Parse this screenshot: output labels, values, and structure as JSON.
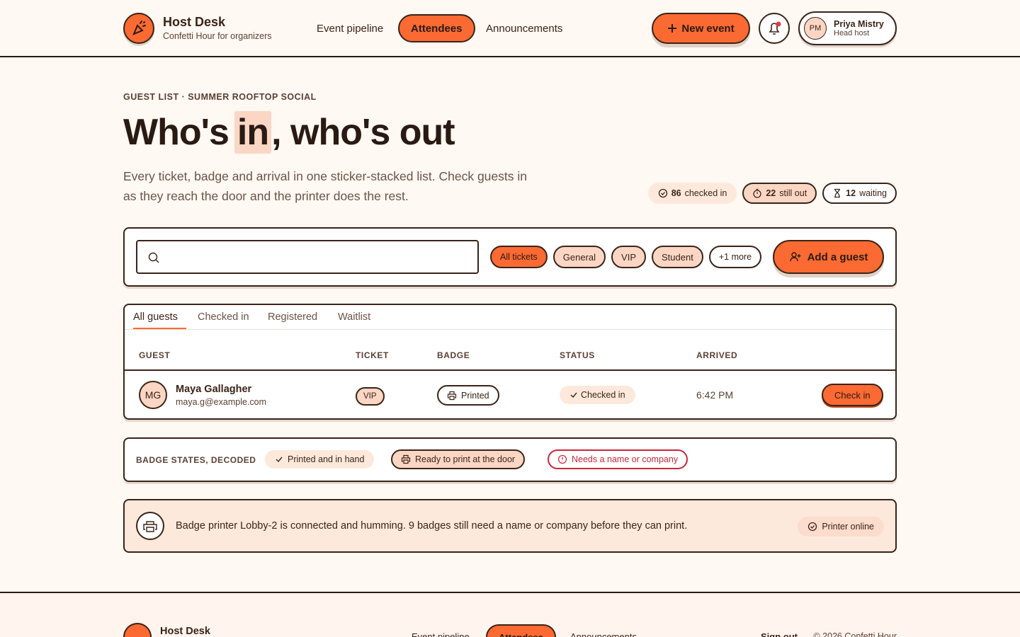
{
  "header": {
    "brand": "Host Desk",
    "tagline": "Confetti Hour for organizers",
    "nav": [
      "Event pipeline",
      "Attendees",
      "Announcements"
    ],
    "new_event": "New event",
    "user": {
      "initials": "PM",
      "name": "Priya Mistry",
      "role": "Head host"
    }
  },
  "hero": {
    "eyebrow": "GUEST LIST · SUMMER ROOFTOP SOCIAL",
    "title_before": "Who's",
    "title_highlight": "in",
    "title_after": ", who's out",
    "description": "Every ticket, badge and arrival in one sticker-stacked list. Check guests in as they reach the door and the printer does the rest.",
    "stats": [
      {
        "count": 86,
        "label": "checked in"
      },
      {
        "count": 22,
        "label": "still out"
      },
      {
        "count": 12,
        "label": "waiting"
      }
    ]
  },
  "toolbar": {
    "filters": [
      "All tickets",
      "General",
      "VIP",
      "Student",
      "+1 more"
    ],
    "add": "Add a guest"
  },
  "tabs": [
    "All guests",
    "Checked in",
    "Registered",
    "Waitlist"
  ],
  "table": {
    "columns": [
      "GUEST",
      "TICKET",
      "BADGE",
      "STATUS",
      "ARRIVED"
    ],
    "rows": [
      {
        "initials": "MG",
        "name": "Maya Gallagher",
        "email": "maya.g@example.com",
        "ticket": "VIP",
        "badge": "Printed",
        "status": "Checked in",
        "arrived": "6:42 PM",
        "action": "Check in"
      }
    ]
  },
  "legend": {
    "title": "BADGE STATES, DECODED",
    "items": [
      "Printed and in hand",
      "Ready to print at the door",
      "Needs a name or company"
    ]
  },
  "notice": {
    "text": "Badge printer Lobby-2 is connected and humming. 9 badges still need a name or company before they can print.",
    "status": "Printer online"
  },
  "footer": {
    "brand": "Host Desk",
    "nav": [
      "Event pipeline",
      "Attendees",
      "Announcements"
    ],
    "sign_out": "Sign out",
    "copyright": "© 2026 Confetti Hour"
  }
}
